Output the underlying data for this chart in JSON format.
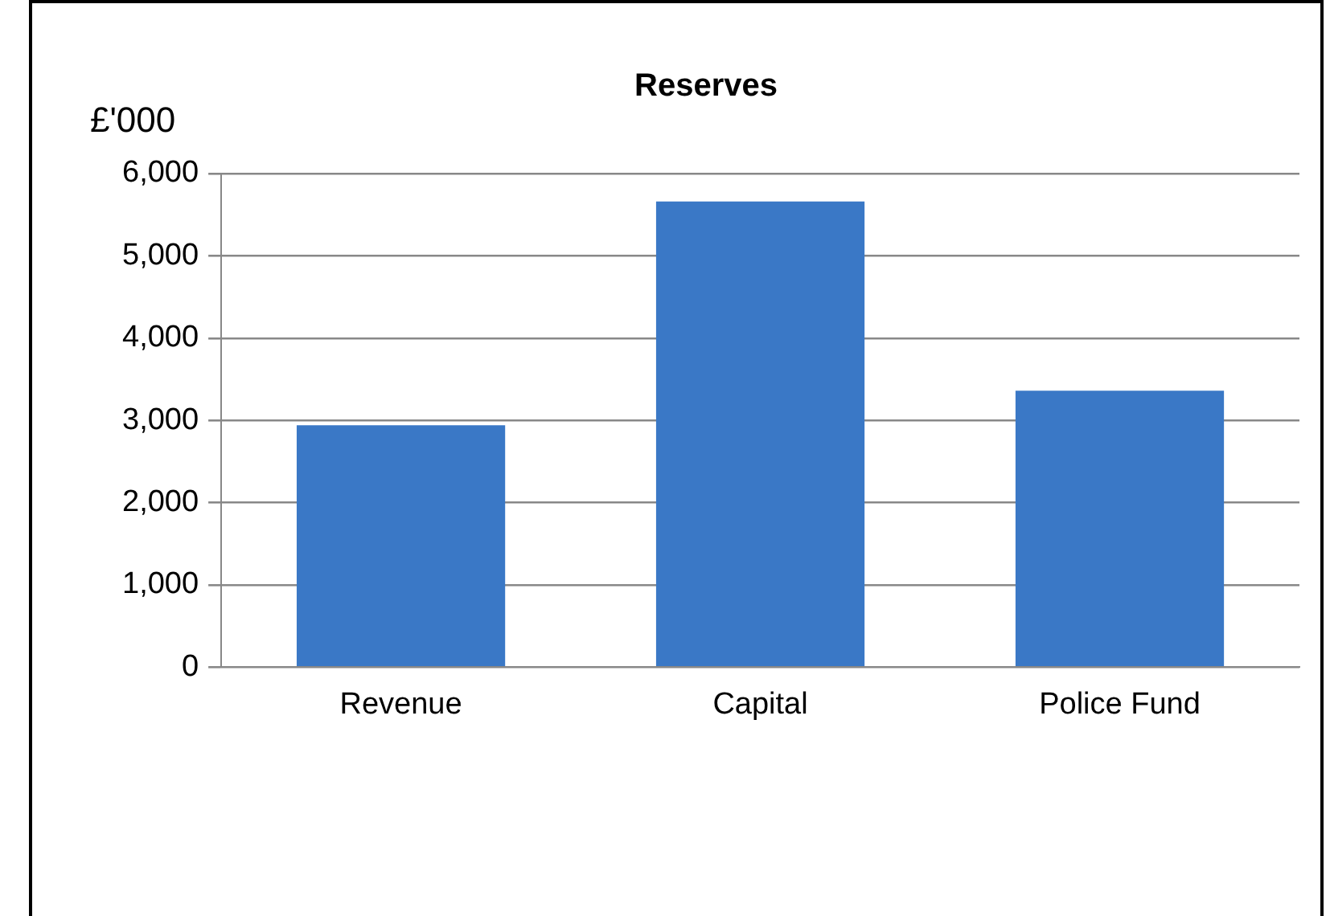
{
  "chart_data": {
    "type": "bar",
    "title": "Reserves",
    "ylabel": "£'000",
    "categories": [
      "Revenue",
      "Capital",
      "Police Fund"
    ],
    "values": [
      2940,
      5660,
      3360
    ],
    "color": "#3a78c6",
    "ylim": [
      0,
      6000
    ],
    "yticks": [
      0,
      {
        "value": 1000,
        "label": "1,000"
      },
      {
        "value": 2000,
        "label": "2,000"
      },
      {
        "value": 3000,
        "label": "3,000"
      },
      {
        "value": 4000,
        "label": "4,000"
      },
      {
        "value": 5000,
        "label": "5,000"
      },
      {
        "value": 6000,
        "label": "6,000"
      }
    ],
    "grid": "y",
    "legend": false
  }
}
